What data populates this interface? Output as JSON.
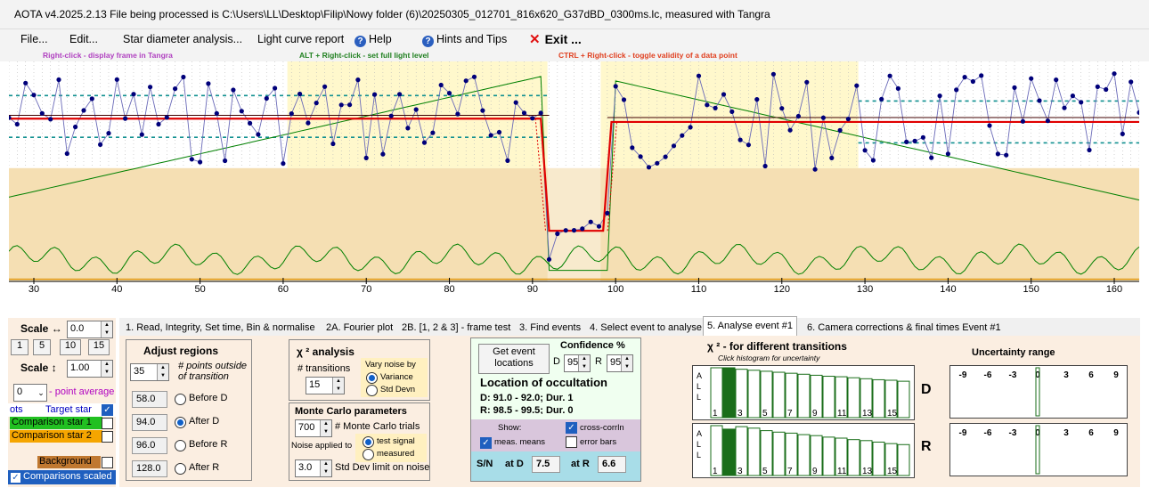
{
  "title": "AOTA v4.2025.2.13   File being processed is C:\\Users\\LL\\Desktop\\Filip\\Nowy folder (6)\\20250305_012701_816x620_G37dBD_0300ms.lc, measured with Tangra",
  "menu": {
    "file": "File...",
    "edit": "Edit...",
    "star_diameter": "Star diameter analysis...",
    "light_curve_report": "Light curve report",
    "help": "Help",
    "hints": "Hints and Tips",
    "exit": "Exit ..."
  },
  "hints": {
    "right_click": "Right-click  -  display frame in Tangra",
    "alt_right_click": "ALT + Right-click  -  set full light level",
    "ctrl_right_click": "CTRL + Right-click  -  toggle validity of a data point"
  },
  "chart_data": {
    "type": "line",
    "xlim": [
      27,
      163
    ],
    "x_ticks": [
      30,
      40,
      50,
      60,
      70,
      80,
      90,
      100,
      110,
      120,
      130,
      140,
      150,
      160
    ],
    "colors": {
      "points": "#00007a",
      "model": "#e00000",
      "green": "#008000",
      "orange": "#e09000",
      "band_yellow": "#fff8cc",
      "band_tan": "#f5dfb3"
    },
    "model_levels": {
      "pre_baseline_y": 0.26,
      "post_baseline_y": 0.275,
      "bottom_y": 0.77,
      "D_start": 91.0,
      "D_end": 92.0,
      "R_start": 98.5,
      "R_end": 99.5
    }
  },
  "tabs": [
    "1.  Read, Integrity, Set time, Bin & normalise",
    "2A. Fourier plot",
    "2B. [1, 2 & 3] - frame test",
    "3. Find events",
    "4. Select event to analyse",
    "5. Analyse event #1",
    "6. Camera corrections & final times Event #1"
  ],
  "left": {
    "scale_h_label": "Scale ↔",
    "scale_h_value": "0.0",
    "zoom_buttons": [
      "1",
      "5",
      "10",
      "15"
    ],
    "scale_v_label": "Scale ↕",
    "scale_v_value": "1.00",
    "point_avg_value": "0",
    "point_avg_label": "- point average",
    "pts_label": "ots",
    "target_star": "Target star",
    "comparison1": "Comparison star 1",
    "comparison2": "Comparison star 2",
    "background": "Background",
    "comparisons_scaled": "Comparisons scaled"
  },
  "adjust": {
    "title": "Adjust regions",
    "points_outside_value": "35",
    "points_outside_label": "# points outside of transition",
    "rows": [
      {
        "value": "58.0",
        "label": "Before D",
        "selected": false
      },
      {
        "value": "94.0",
        "label": "After D",
        "selected": true
      },
      {
        "value": "96.0",
        "label": "Before R",
        "selected": false
      },
      {
        "value": "128.0",
        "label": "After R",
        "selected": false
      }
    ]
  },
  "chi": {
    "title": "χ ² analysis",
    "transitions_label": "# transitions",
    "transitions_value": "15",
    "vary_label": "Vary noise by",
    "variance": "Variance",
    "std_devn": "Std Devn"
  },
  "mc": {
    "title": "Monte Carlo parameters",
    "trials_value": "700",
    "trials_label": "# Monte Carlo trials",
    "noise_applied": "Noise applied to",
    "test_signal": "test signal",
    "measured": "measured",
    "sd_value": "3.0",
    "sd_label": "Std Dev limit on noise"
  },
  "location": {
    "get_button": "Get event locations",
    "confidence_title": "Confidence %",
    "d_label": "D",
    "d_value": "95",
    "r_label": "R",
    "r_value": "95",
    "heading": "Location of occultation",
    "d_line": "D: 91.0 - 92.0; Dur. 1",
    "r_line": "R: 98.5 - 99.5; Dur. 0",
    "show": "Show:",
    "cross_corrln": "cross-corrln",
    "meas_means": "meas. means",
    "error_bars": "error bars",
    "sn": "S/N",
    "at_d": "at D",
    "at_d_value": "7.5",
    "at_r": "at R",
    "at_r_value": "6.6"
  },
  "chi_hist": {
    "title": "χ ² - for different transitions",
    "subtitle": "Click histogram for uncertainty",
    "d_label": "D",
    "r_label": "R",
    "all_label": "A L L",
    "ticks": [
      "1",
      "3",
      "5",
      "7",
      "9",
      "11",
      "13",
      "15"
    ],
    "d_bars": [
      1.0,
      1.0,
      0.97,
      0.95,
      0.93,
      0.91,
      0.89,
      0.87,
      0.85,
      0.83,
      0.82,
      0.8,
      0.78,
      0.76,
      0.75,
      0.73
    ],
    "r_bars": [
      1.0,
      0.93,
      0.98,
      0.95,
      0.9,
      0.87,
      0.85,
      0.82,
      0.8,
      0.77,
      0.75,
      0.72,
      0.7,
      0.67,
      0.64,
      0.62
    ]
  },
  "uncertainty": {
    "title": "Uncertainty range",
    "ticks": [
      "-9",
      "-6",
      "-3",
      "0",
      "3",
      "6",
      "9"
    ]
  }
}
